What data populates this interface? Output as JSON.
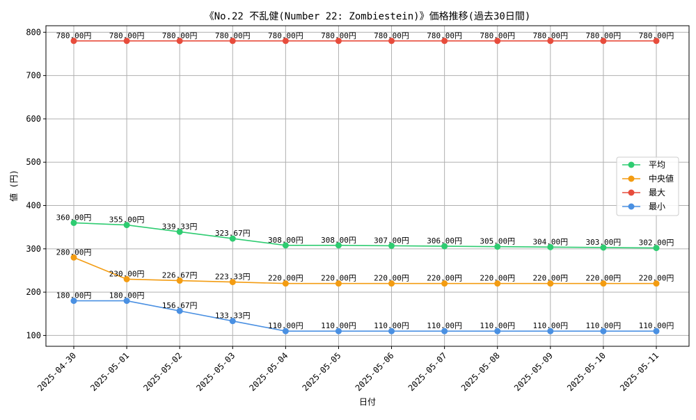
{
  "chart_data": {
    "type": "line",
    "title": "《No.22 不乱健(Number 22: Zombiestein)》価格推移(過去30日間)",
    "xlabel": "日付",
    "ylabel": "値 (円)",
    "categories": [
      "2025-04-30",
      "2025-05-01",
      "2025-05-02",
      "2025-05-03",
      "2025-05-04",
      "2025-05-05",
      "2025-05-06",
      "2025-05-07",
      "2025-05-08",
      "2025-05-09",
      "2025-05-10",
      "2025-05-11"
    ],
    "ylim": [
      75,
      815
    ],
    "yticks": [
      "100",
      "200",
      "300",
      "400",
      "500",
      "600",
      "700",
      "800"
    ],
    "grid": true,
    "legend_position": "center-right",
    "series": [
      {
        "name": "平均",
        "color": "#2ecc71",
        "values": [
          360.0,
          355.0,
          339.33,
          323.67,
          308.0,
          308.0,
          307.0,
          306.0,
          305.0,
          304.0,
          303.0,
          302.0
        ],
        "labels": [
          "360.00円",
          "355.00円",
          "339.33円",
          "323.67円",
          "308.00円",
          "308.00円",
          "307.00円",
          "306.00円",
          "305.00円",
          "304.00円",
          "303.00円",
          "302.00円"
        ]
      },
      {
        "name": "中央値",
        "color": "#f39c12",
        "values": [
          280.0,
          230.0,
          226.67,
          223.33,
          220.0,
          220.0,
          220.0,
          220.0,
          220.0,
          220.0,
          220.0,
          220.0
        ],
        "labels": [
          "280.00円",
          "230.00円",
          "226.67円",
          "223.33円",
          "220.00円",
          "220.00円",
          "220.00円",
          "220.00円",
          "220.00円",
          "220.00円",
          "220.00円",
          "220.00円"
        ]
      },
      {
        "name": "最大",
        "color": "#e74c3c",
        "values": [
          780.0,
          780.0,
          780.0,
          780.0,
          780.0,
          780.0,
          780.0,
          780.0,
          780.0,
          780.0,
          780.0,
          780.0
        ],
        "labels": [
          "780.00円",
          "780.00円",
          "780.00円",
          "780.00円",
          "780.00円",
          "780.00円",
          "780.00円",
          "780.00円",
          "780.00円",
          "780.00円",
          "780.00円",
          "780.00円"
        ]
      },
      {
        "name": "最小",
        "color": "#4a90e2",
        "values": [
          180.0,
          180.0,
          156.67,
          133.33,
          110.0,
          110.0,
          110.0,
          110.0,
          110.0,
          110.0,
          110.0,
          110.0
        ],
        "labels": [
          "180.00円",
          "180.00円",
          "156.67円",
          "133.33円",
          "110.00円",
          "110.00円",
          "110.00円",
          "110.00円",
          "110.00円",
          "110.00円",
          "110.00円",
          "110.00円"
        ]
      }
    ]
  }
}
